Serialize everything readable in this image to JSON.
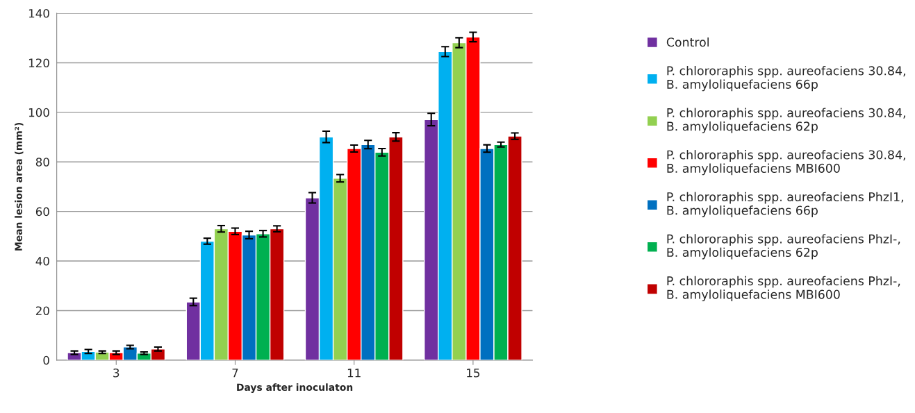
{
  "chart_data": {
    "type": "bar",
    "xlabel": "Days after inoculaton",
    "ylabel": "Mean lesion area (mm²)",
    "categories": [
      "3",
      "7",
      "11",
      "15"
    ],
    "ylim": [
      0,
      140
    ],
    "yticks": [
      0,
      20,
      40,
      60,
      80,
      100,
      120,
      140
    ],
    "grid": "y",
    "legend": "right",
    "series": [
      {
        "name": "Control",
        "color": "#7030a0",
        "values": [
          3,
          23.5,
          65.5,
          97.1
        ],
        "errors": [
          0.7,
          1.5,
          2.1,
          2.5
        ]
      },
      {
        "name": "P. chlororaphis spp. aureofaciens 30.84,\nB. amyloliquefaciens 66p",
        "color": "#00b0f0",
        "values": [
          3.5,
          48,
          90.1,
          124.5
        ],
        "errors": [
          0.8,
          1.2,
          2.3,
          2
        ]
      },
      {
        "name": "P. chlororaphis spp. aureofaciens 30.84,\nB. amyloliquefaciens 62p",
        "color": "#92d050",
        "values": [
          3.2,
          53,
          73.4,
          128.1
        ],
        "errors": [
          0.5,
          1.3,
          1.5,
          2
        ]
      },
      {
        "name": "P. chlororaphis spp. aureofaciens 30.84,\nB. amyloliquefaciens MBI600",
        "color": "#ff0000",
        "values": [
          3,
          52,
          85.4,
          130.4
        ],
        "errors": [
          0.7,
          1.3,
          1.4,
          1.9
        ]
      },
      {
        "name": "P. chlororaphis spp. aureofaciens PhzI1,\nB. amyloliquefaciens 66p",
        "color": "#0070c0",
        "values": [
          5.3,
          50.5,
          87,
          85.4
        ],
        "errors": [
          0.7,
          1.5,
          1.7,
          1.5
        ]
      },
      {
        "name": "P. chlororaphis spp. aureofaciens PhzI-,\nB. amyloliquefaciens 62p",
        "color": "#00b050",
        "values": [
          2.8,
          51,
          83.9,
          87
        ],
        "errors": [
          0.5,
          1.3,
          1.5,
          1
        ]
      },
      {
        "name": "P. chlororaphis spp. aureofaciens PhzI-,\nB. amyloliquefaciens MBI600",
        "color": "#c00000",
        "values": [
          4.5,
          53,
          90.1,
          90.4
        ],
        "errors": [
          0.8,
          1.2,
          1.7,
          1.3
        ]
      }
    ]
  }
}
